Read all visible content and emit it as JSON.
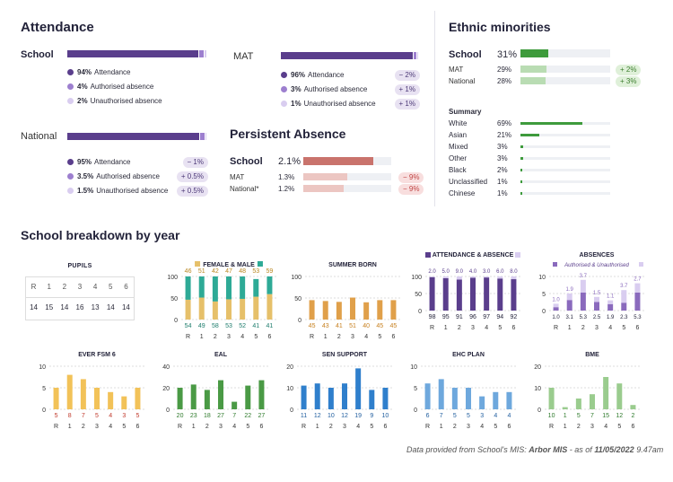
{
  "attendance": {
    "title": "Attendance",
    "school": {
      "label": "School",
      "legend": [
        {
          "value": "94%",
          "label": "Attendance",
          "color": "#5a3e8c"
        },
        {
          "value": "4%",
          "label": "Authorised absence",
          "color": "#9d7fcf"
        },
        {
          "value": "2%",
          "label": "Unauthorised absence",
          "color": "#d9cdf0"
        }
      ],
      "parts": [
        94,
        4,
        2
      ]
    },
    "mat": {
      "label": "MAT",
      "legend": [
        {
          "value": "96%",
          "label": "Attendance",
          "delta": "− 2%"
        },
        {
          "value": "3%",
          "label": "Authorised absence",
          "delta": "+ 1%"
        },
        {
          "value": "1%",
          "label": "Unauthorised absence",
          "delta": "+ 1%"
        }
      ],
      "parts": [
        96,
        3,
        1
      ]
    },
    "national": {
      "label": "National",
      "legend": [
        {
          "value": "95%",
          "label": "Attendance",
          "delta": "− 1%"
        },
        {
          "value": "3.5%",
          "label": "Authorised absence",
          "delta": "+ 0.5%"
        },
        {
          "value": "1.5%",
          "label": "Unauthorised absence",
          "delta": "+ 0.5%"
        }
      ],
      "parts": [
        95,
        3.5,
        1.5
      ]
    }
  },
  "persistent_absence": {
    "title": "Persistent Absence",
    "school": {
      "label": "School",
      "value": "2.1%",
      "pct": 0.8
    },
    "mat": {
      "label": "MAT",
      "value": "1.3%",
      "pct": 0.5,
      "delta": "− 9%"
    },
    "national": {
      "label": "National*",
      "value": "1.2%",
      "pct": 0.46,
      "delta": "− 9%"
    }
  },
  "ethnic": {
    "title": "Ethnic minorities",
    "school": {
      "label": "School",
      "value": "31%",
      "pct": 0.31
    },
    "mat": {
      "label": "MAT",
      "value": "29%",
      "pct": 0.29,
      "delta": "+ 2%"
    },
    "national": {
      "label": "National",
      "value": "28%",
      "pct": 0.28,
      "delta": "+ 3%"
    },
    "summary_title": "Summary",
    "summary": [
      {
        "label": "White",
        "value": "69%",
        "pct": 0.69
      },
      {
        "label": "Asian",
        "value": "21%",
        "pct": 0.21
      },
      {
        "label": "Mixed",
        "value": "3%",
        "pct": 0.03
      },
      {
        "label": "Other",
        "value": "3%",
        "pct": 0.03
      },
      {
        "label": "Black",
        "value": "2%",
        "pct": 0.02
      },
      {
        "label": "Unclassified",
        "value": "1%",
        "pct": 0.01
      },
      {
        "label": "Chinese",
        "value": "1%",
        "pct": 0.01
      }
    ]
  },
  "breakdown": {
    "title": "School breakdown by year",
    "pupils": {
      "title": "PUPILS",
      "years": [
        "R",
        "1",
        "2",
        "3",
        "4",
        "5",
        "6"
      ],
      "values": [
        "14",
        "15",
        "14",
        "16",
        "13",
        "14",
        "14"
      ]
    }
  },
  "chart_data": [
    {
      "type": "bar",
      "id": "female_male",
      "title": "FEMALE & MALE",
      "stacked": true,
      "categories": [
        "R",
        "1",
        "2",
        "3",
        "4",
        "5",
        "6"
      ],
      "series": [
        {
          "name": "Female",
          "values": [
            46,
            51,
            42,
            47,
            48,
            53,
            59
          ],
          "color": "#e6c06a"
        },
        {
          "name": "Male",
          "values": [
            54,
            49,
            58,
            53,
            52,
            41,
            41
          ],
          "color": "#2eaa96"
        }
      ],
      "yticks": [
        "100",
        "50",
        "0"
      ],
      "ylim": [
        0,
        100
      ]
    },
    {
      "type": "bar",
      "id": "summer_born",
      "title": "SUMMER BORN",
      "categories": [
        "R",
        "1",
        "2",
        "3",
        "4",
        "5",
        "6"
      ],
      "values": [
        45,
        43,
        41,
        51,
        40,
        45,
        45
      ],
      "color": "#e0a04a",
      "label_color": "#c7801f",
      "yticks": [
        "100",
        "50",
        "0"
      ],
      "ylim": [
        0,
        100
      ]
    },
    {
      "type": "bar",
      "id": "attendance_absence",
      "title": "ATTENDANCE & ABSENCE",
      "stacked": true,
      "categories": [
        "R",
        "1",
        "2",
        "3",
        "4",
        "5",
        "6"
      ],
      "series": [
        {
          "name": "Attendance",
          "values": [
            98,
            95,
            91,
            96,
            97,
            94,
            92
          ],
          "color": "#5a3e8c"
        },
        {
          "name": "Absence",
          "values": [
            2.0,
            5.0,
            9.0,
            4.0,
            3.0,
            6.0,
            8.0
          ],
          "color": "#d9cdf0"
        }
      ],
      "top_labels": [
        "2.0",
        "5.0",
        "9.0",
        "4.0",
        "3.0",
        "6.0",
        "8.0"
      ],
      "yticks": [
        "100",
        "50",
        "0"
      ],
      "ylim": [
        0,
        100
      ]
    },
    {
      "type": "bar",
      "id": "absences",
      "title": "ABSENCES",
      "subtitle": "Authorised & Unauthorised",
      "stacked": true,
      "categories": [
        "R",
        "1",
        "2",
        "3",
        "4",
        "5",
        "6"
      ],
      "series": [
        {
          "name": "Authorised",
          "values": [
            1.0,
            3.1,
            5.3,
            2.5,
            1.9,
            2.3,
            5.3
          ],
          "color": "#8a6abd"
        },
        {
          "name": "Unauthorised",
          "values": [
            1.0,
            1.9,
            3.7,
            1.5,
            1.1,
            3.7,
            2.7
          ],
          "color": "#d9cdf0"
        }
      ],
      "yticks": [
        "10",
        "5",
        "0"
      ],
      "ylim": [
        0,
        10
      ]
    },
    {
      "type": "bar",
      "id": "ever_fsm6",
      "title": "EVER FSM 6",
      "categories": [
        "R",
        "1",
        "2",
        "3",
        "4",
        "5",
        "6"
      ],
      "values": [
        5,
        8,
        7,
        5,
        4,
        3,
        5
      ],
      "color": "#f2c258",
      "label_color": "#c0392b",
      "yticks": [
        "10",
        "5",
        "0"
      ],
      "ylim": [
        0,
        10
      ]
    },
    {
      "type": "bar",
      "id": "eal",
      "title": "EAL",
      "categories": [
        "R",
        "1",
        "2",
        "3",
        "4",
        "5",
        "6"
      ],
      "values": [
        20,
        23,
        18,
        27,
        7,
        22,
        27
      ],
      "color": "#4a9a45",
      "label_color": "#2e7a2b",
      "yticks": [
        "40",
        "20",
        "0"
      ],
      "ylim": [
        0,
        40
      ]
    },
    {
      "type": "bar",
      "id": "sen_support",
      "title": "SEN SUPPORT",
      "categories": [
        "R",
        "1",
        "2",
        "3",
        "4",
        "5",
        "6"
      ],
      "values": [
        11,
        12,
        10,
        12,
        19,
        9,
        10
      ],
      "color": "#2f7fcc",
      "label_color": "#1f5d9e",
      "yticks": [
        "20",
        "10",
        "0"
      ],
      "ylim": [
        0,
        20
      ]
    },
    {
      "type": "bar",
      "id": "ehc_plan",
      "title": "EHC PLAN",
      "categories": [
        "R",
        "1",
        "2",
        "3",
        "4",
        "5",
        "6"
      ],
      "values": [
        6,
        7,
        5,
        5,
        3,
        4,
        4
      ],
      "color": "#6ea8dd",
      "label_color": "#1f5d9e",
      "yticks": [
        "10",
        "5",
        "0"
      ],
      "ylim": [
        0,
        10
      ]
    },
    {
      "type": "bar",
      "id": "bme",
      "title": "BME",
      "categories": [
        "R",
        "1",
        "2",
        "3",
        "4",
        "5",
        "6"
      ],
      "values": [
        10,
        1,
        5,
        7,
        15,
        12,
        2
      ],
      "color": "#9acc8e",
      "label_color": "#2e7a2b",
      "yticks": [
        "20",
        "10",
        "0"
      ],
      "ylim": [
        0,
        20
      ]
    }
  ],
  "footer": {
    "prefix": "Data provided from School's MIS: ",
    "mis": "Arbor MIS",
    "mid": " - as of ",
    "date": "11/05/2022",
    "time": " 9.47am"
  }
}
